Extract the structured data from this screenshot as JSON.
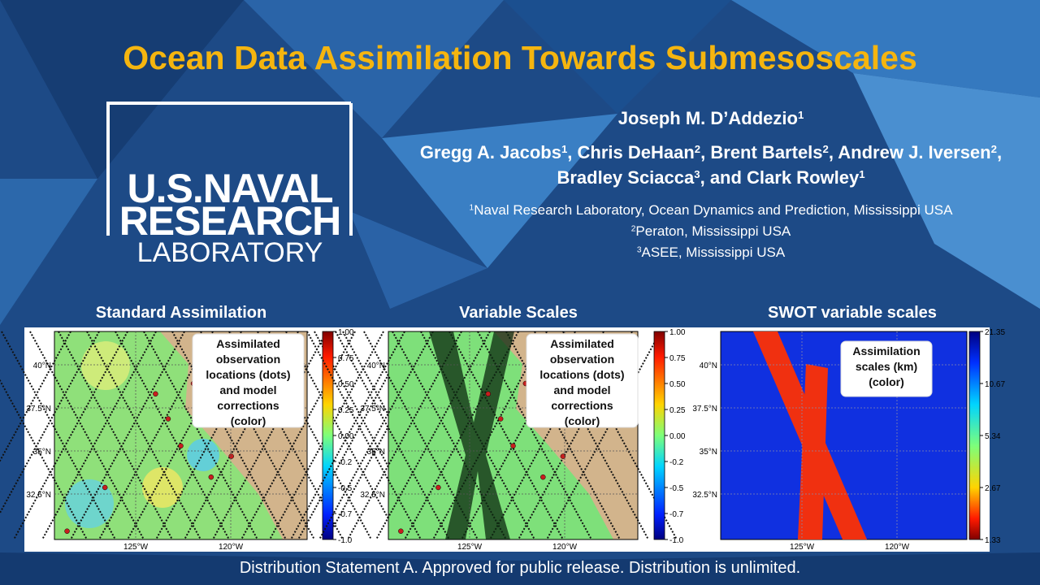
{
  "title": "Ocean Data Assimilation Towards Submesoscales",
  "logo": {
    "line1": "U.S.NAVAL",
    "line2": "RESEARCH",
    "line3": "LABORATORY"
  },
  "lead_author": {
    "name": "Joseph M. D’Addezio",
    "sup": "1"
  },
  "separator": ", ",
  "authors": [
    {
      "name": "Gregg A. Jacobs",
      "sup": "1"
    },
    {
      "name": "Chris DeHaan",
      "sup": "2"
    },
    {
      "name": "Brent Bartels",
      "sup": "2"
    },
    {
      "name": "Andrew J. Iversen",
      "sup": "2"
    },
    {
      "name": "Bradley Sciacca",
      "sup": "3"
    },
    {
      "name": "and Clark Rowley",
      "sup": "1"
    }
  ],
  "affiliations": [
    {
      "sup": "1",
      "text": "Naval Research Laboratory, Ocean Dynamics and Prediction, Mississippi USA"
    },
    {
      "sup": "2",
      "text": "Peraton, Mississippi USA"
    },
    {
      "sup": "3",
      "text": "ASEE, Mississippi USA"
    }
  ],
  "panels": [
    {
      "title": "Standard Assimilation",
      "annotation": [
        "Assimilated",
        "observation",
        "locations (dots)",
        "and model",
        "corrections",
        "(color)"
      ],
      "lat_labels": [
        "40°N",
        "37.5°N",
        "35°N",
        "32.5°N"
      ],
      "lon_labels": [
        "125°W",
        "120°W"
      ],
      "colorbar_labels": [
        "1.00",
        "0.75",
        "0.50",
        "0.25",
        "0.00",
        "-0.2",
        "-0.5",
        "-0.7",
        "-1.0"
      ]
    },
    {
      "title": "Variable Scales",
      "annotation": [
        "Assimilated",
        "observation",
        "locations (dots)",
        "and model",
        "corrections",
        "(color)"
      ],
      "lat_labels": [
        "40°N",
        "37.5°N",
        "35°N",
        "32.5°N"
      ],
      "lon_labels": [
        "125°W",
        "120°W"
      ],
      "colorbar_labels": [
        "1.00",
        "0.75",
        "0.50",
        "0.25",
        "0.00",
        "-0.2",
        "-0.5",
        "-0.7",
        "-1.0"
      ]
    },
    {
      "title": "SWOT variable scales",
      "annotation": [
        "Assimilation",
        "scales (km)",
        "(color)"
      ],
      "lat_labels": [
        "40°N",
        "37.5°N",
        "35°N",
        "32.5°N"
      ],
      "lon_labels": [
        "125°W",
        "120°W"
      ],
      "colorbar_labels": [
        "21.35",
        "10.67",
        "5.34",
        "2.67",
        "1.33"
      ]
    }
  ],
  "footer": "Distribution Statement A. Approved for public release. Distribution is unlimited."
}
